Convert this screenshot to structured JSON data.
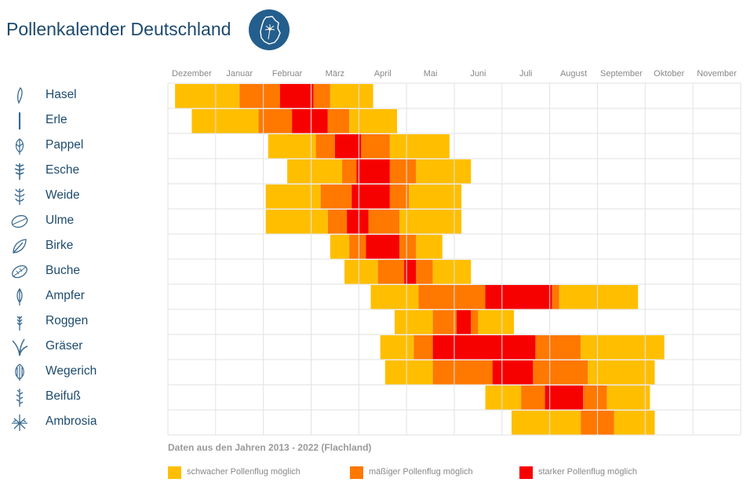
{
  "header": {
    "title": "Pollenkalender Deutschland",
    "logo_icon": "germany-map-dandelion-icon"
  },
  "colors": {
    "weak": "#ffbf00",
    "moderate": "#ff7800",
    "strong": "#f70000",
    "grid": "#e2e2e2",
    "text": "#1d4a6e",
    "logo": "#245e8c"
  },
  "note": "Daten aus den Jahren 2013 - 2022 (Flachland)",
  "legend": [
    {
      "label": "schwacher Pollenflug möglich",
      "level": "weak"
    },
    {
      "label": "mäßiger Pollenflug möglich",
      "level": "moderate"
    },
    {
      "label": "starker Pollenflug möglich",
      "level": "strong"
    }
  ],
  "chart_data": {
    "type": "timeline",
    "months": [
      "Dezember",
      "Januar",
      "Februar",
      "März",
      "April",
      "Mai",
      "Juni",
      "Juli",
      "August",
      "September",
      "Oktober",
      "November"
    ],
    "x_unit": "months from start of Dezember",
    "xlim": [
      0,
      12
    ],
    "grid": true,
    "legend_position": "bottom",
    "plants": [
      {
        "name": "Hasel",
        "icon": "hazel-catkin-icon",
        "segments": [
          {
            "level": "weak",
            "start": 0.15,
            "end": 1.5
          },
          {
            "level": "moderate",
            "start": 1.5,
            "end": 2.35
          },
          {
            "level": "strong",
            "start": 2.35,
            "end": 3.05
          },
          {
            "level": "moderate",
            "start": 3.05,
            "end": 3.4
          },
          {
            "level": "weak",
            "start": 3.4,
            "end": 4.3
          }
        ]
      },
      {
        "name": "Erle",
        "icon": "alder-catkin-icon",
        "segments": [
          {
            "level": "weak",
            "start": 0.5,
            "end": 1.9
          },
          {
            "level": "moderate",
            "start": 1.9,
            "end": 2.6
          },
          {
            "level": "strong",
            "start": 2.6,
            "end": 3.35
          },
          {
            "level": "moderate",
            "start": 3.35,
            "end": 3.8
          },
          {
            "level": "weak",
            "start": 3.8,
            "end": 4.8
          }
        ]
      },
      {
        "name": "Pappel",
        "icon": "poplar-leaf-icon",
        "segments": [
          {
            "level": "weak",
            "start": 2.1,
            "end": 3.1
          },
          {
            "level": "moderate",
            "start": 3.1,
            "end": 3.5
          },
          {
            "level": "strong",
            "start": 3.5,
            "end": 4.05
          },
          {
            "level": "moderate",
            "start": 4.05,
            "end": 4.65
          },
          {
            "level": "weak",
            "start": 4.65,
            "end": 5.9
          }
        ]
      },
      {
        "name": "Esche",
        "icon": "ash-leaf-icon",
        "segments": [
          {
            "level": "weak",
            "start": 2.5,
            "end": 3.65
          },
          {
            "level": "moderate",
            "start": 3.65,
            "end": 3.95
          },
          {
            "level": "strong",
            "start": 3.95,
            "end": 4.65
          },
          {
            "level": "moderate",
            "start": 4.65,
            "end": 5.2
          },
          {
            "level": "weak",
            "start": 5.2,
            "end": 6.35
          }
        ]
      },
      {
        "name": "Weide",
        "icon": "willow-branch-icon",
        "segments": [
          {
            "level": "weak",
            "start": 2.05,
            "end": 3.2
          },
          {
            "level": "moderate",
            "start": 3.2,
            "end": 3.85
          },
          {
            "level": "strong",
            "start": 3.85,
            "end": 4.65
          },
          {
            "level": "moderate",
            "start": 4.65,
            "end": 5.05
          },
          {
            "level": "weak",
            "start": 5.05,
            "end": 6.15
          }
        ]
      },
      {
        "name": "Ulme",
        "icon": "elm-leaf-icon",
        "segments": [
          {
            "level": "weak",
            "start": 2.05,
            "end": 3.35
          },
          {
            "level": "moderate",
            "start": 3.35,
            "end": 3.75
          },
          {
            "level": "strong",
            "start": 3.75,
            "end": 4.2
          },
          {
            "level": "moderate",
            "start": 4.2,
            "end": 4.85
          },
          {
            "level": "weak",
            "start": 4.85,
            "end": 6.15
          }
        ]
      },
      {
        "name": "Birke",
        "icon": "birch-leaf-icon",
        "segments": [
          {
            "level": "weak",
            "start": 3.4,
            "end": 3.8
          },
          {
            "level": "moderate",
            "start": 3.8,
            "end": 4.15
          },
          {
            "level": "strong",
            "start": 4.15,
            "end": 4.85
          },
          {
            "level": "moderate",
            "start": 4.85,
            "end": 5.2
          },
          {
            "level": "weak",
            "start": 5.2,
            "end": 5.75
          }
        ]
      },
      {
        "name": "Buche",
        "icon": "beech-leaf-icon",
        "segments": [
          {
            "level": "weak",
            "start": 3.7,
            "end": 4.4
          },
          {
            "level": "moderate",
            "start": 4.4,
            "end": 4.95
          },
          {
            "level": "strong",
            "start": 4.95,
            "end": 5.2
          },
          {
            "level": "moderate",
            "start": 5.2,
            "end": 5.55
          },
          {
            "level": "weak",
            "start": 5.55,
            "end": 6.35
          }
        ]
      },
      {
        "name": "Ampfer",
        "icon": "sorrel-leaf-icon",
        "segments": [
          {
            "level": "weak",
            "start": 4.25,
            "end": 5.25
          },
          {
            "level": "moderate",
            "start": 5.25,
            "end": 6.65
          },
          {
            "level": "strong",
            "start": 6.65,
            "end": 8.05
          },
          {
            "level": "moderate",
            "start": 8.05,
            "end": 8.2
          },
          {
            "level": "weak",
            "start": 8.2,
            "end": 9.85
          }
        ]
      },
      {
        "name": "Roggen",
        "icon": "rye-ear-icon",
        "segments": [
          {
            "level": "weak",
            "start": 4.75,
            "end": 5.55
          },
          {
            "level": "moderate",
            "start": 5.55,
            "end": 6.05
          },
          {
            "level": "strong",
            "start": 6.05,
            "end": 6.35
          },
          {
            "level": "moderate",
            "start": 6.35,
            "end": 6.5
          },
          {
            "level": "weak",
            "start": 6.5,
            "end": 7.25
          }
        ]
      },
      {
        "name": "Gräser",
        "icon": "grass-icon",
        "segments": [
          {
            "level": "weak",
            "start": 4.45,
            "end": 5.15
          },
          {
            "level": "moderate",
            "start": 5.15,
            "end": 5.55
          },
          {
            "level": "strong",
            "start": 5.55,
            "end": 7.7
          },
          {
            "level": "moderate",
            "start": 7.7,
            "end": 8.65
          },
          {
            "level": "weak",
            "start": 8.65,
            "end": 10.4
          }
        ]
      },
      {
        "name": "Wegerich",
        "icon": "plantain-leaf-icon",
        "segments": [
          {
            "level": "weak",
            "start": 4.55,
            "end": 5.55
          },
          {
            "level": "moderate",
            "start": 5.55,
            "end": 6.8
          },
          {
            "level": "strong",
            "start": 6.8,
            "end": 7.65
          },
          {
            "level": "moderate",
            "start": 7.65,
            "end": 8.8
          },
          {
            "level": "weak",
            "start": 8.8,
            "end": 10.2
          }
        ]
      },
      {
        "name": "Beifuß",
        "icon": "mugwort-icon",
        "segments": [
          {
            "level": "weak",
            "start": 6.65,
            "end": 7.4
          },
          {
            "level": "moderate",
            "start": 7.4,
            "end": 7.9
          },
          {
            "level": "strong",
            "start": 7.9,
            "end": 8.7
          },
          {
            "level": "moderate",
            "start": 8.7,
            "end": 9.2
          },
          {
            "level": "weak",
            "start": 9.2,
            "end": 10.1
          }
        ]
      },
      {
        "name": "Ambrosia",
        "icon": "ragweed-icon",
        "segments": [
          {
            "level": "weak",
            "start": 7.2,
            "end": 8.65
          },
          {
            "level": "moderate",
            "start": 8.65,
            "end": 9.35
          },
          {
            "level": "weak",
            "start": 9.35,
            "end": 10.2
          }
        ]
      }
    ]
  }
}
